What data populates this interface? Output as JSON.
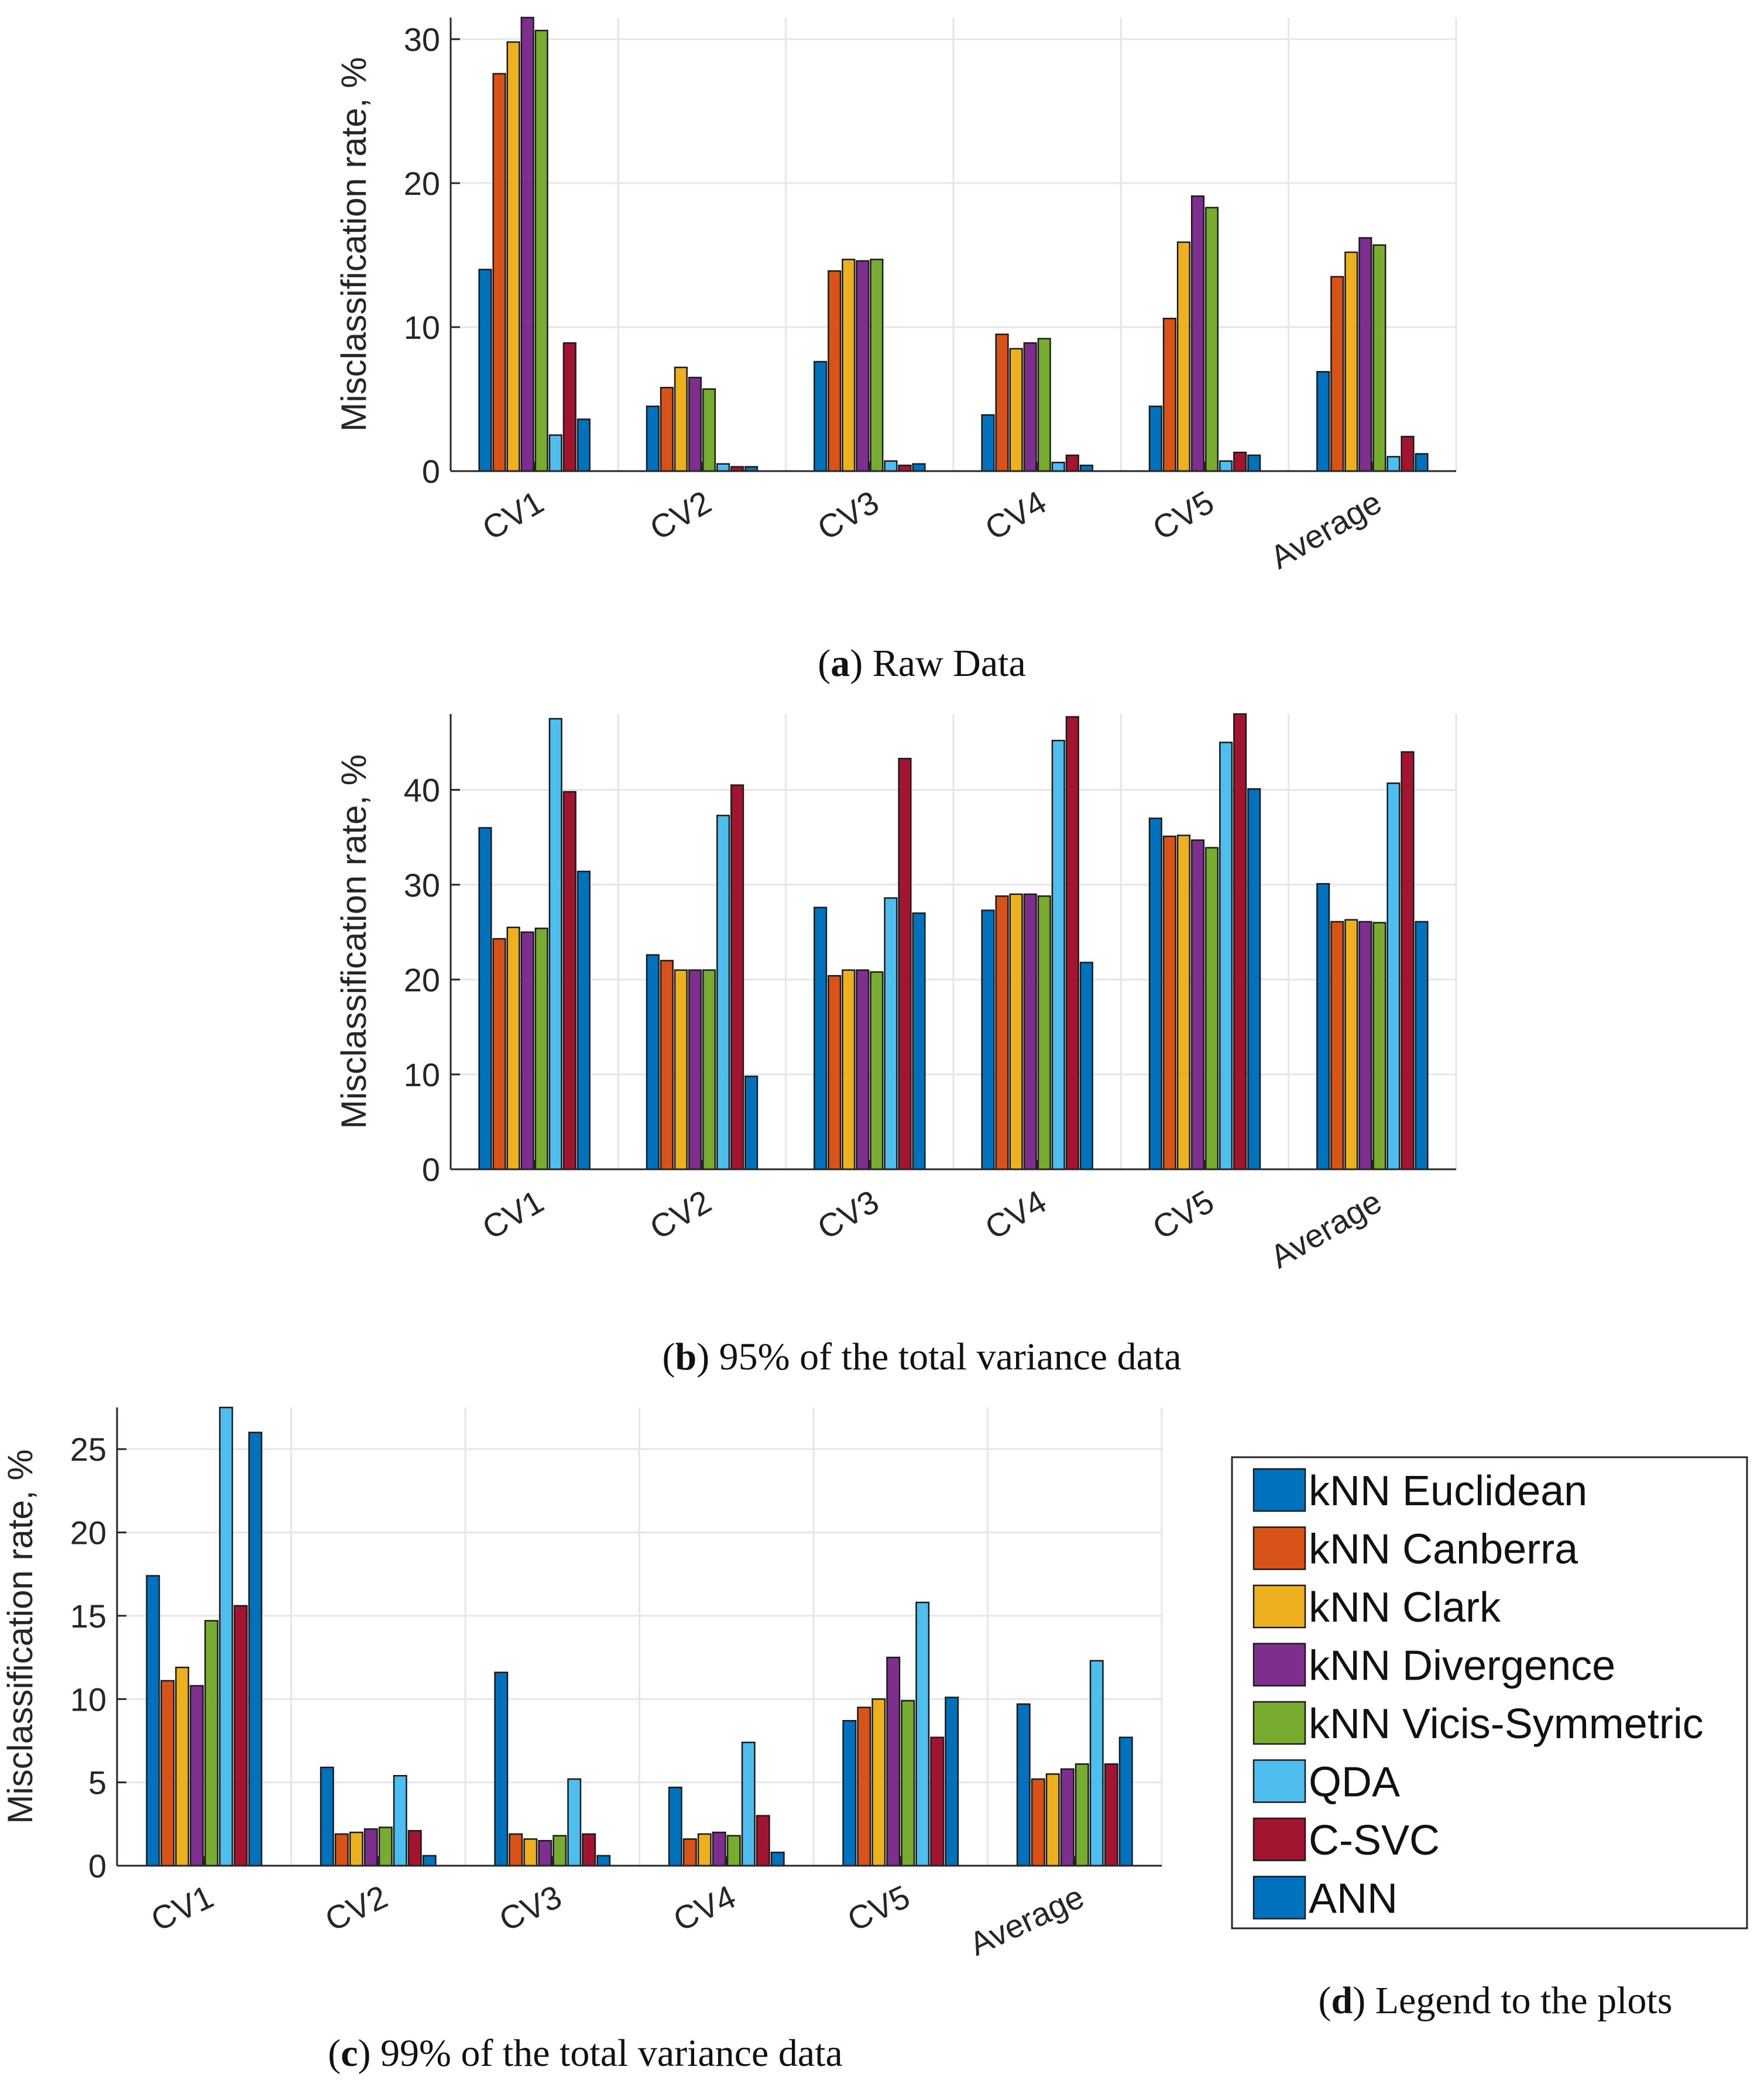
{
  "colors": {
    "kNN Euclidean": "#0072BD",
    "kNN Canberra": "#D95319",
    "kNN Clark": "#EDB120",
    "kNN Divergence": "#7E2F8E",
    "kNN Vicis-Symmetric": "#77AC30",
    "QDA": "#4DBEEE",
    "C-SVC": "#A2142F",
    "ANN": "#0072BD"
  },
  "legend": {
    "items": [
      "kNN Euclidean",
      "kNN Canberra",
      "kNN Clark",
      "kNN Divergence",
      "kNN Vicis-Symmetric",
      "QDA",
      "C-SVC",
      "ANN"
    ],
    "caption_letter": "d",
    "caption_rest": " Legend to the plots"
  },
  "chart_data": [
    {
      "type": "bar",
      "caption_letter": "a",
      "caption_rest": " Raw Data",
      "ylabel": "Misclassification rate, %",
      "ylim": [
        0,
        31.5
      ],
      "yticks": [
        0,
        10,
        20,
        30
      ],
      "grid": true,
      "categories": [
        "CV1",
        "CV2",
        "CV3",
        "CV4",
        "CV5",
        "Average"
      ],
      "series": [
        {
          "name": "kNN Euclidean",
          "values": [
            14.0,
            4.5,
            7.6,
            3.9,
            4.5,
            6.9
          ]
        },
        {
          "name": "kNN Canberra",
          "values": [
            27.6,
            5.8,
            13.9,
            9.5,
            10.6,
            13.5
          ]
        },
        {
          "name": "kNN Clark",
          "values": [
            29.8,
            7.2,
            14.7,
            8.5,
            15.9,
            15.2
          ]
        },
        {
          "name": "kNN Divergence",
          "values": [
            31.5,
            6.5,
            14.6,
            8.9,
            19.1,
            16.2
          ]
        },
        {
          "name": "kNN Vicis-Symmetric",
          "values": [
            30.6,
            5.7,
            14.7,
            9.2,
            18.3,
            15.7
          ]
        },
        {
          "name": "QDA",
          "values": [
            2.5,
            0.5,
            0.7,
            0.6,
            0.7,
            1.0
          ]
        },
        {
          "name": "C-SVC",
          "values": [
            8.9,
            0.3,
            0.4,
            1.1,
            1.3,
            2.4
          ]
        },
        {
          "name": "ANN",
          "values": [
            3.6,
            0.3,
            0.5,
            0.4,
            1.1,
            1.2
          ]
        }
      ]
    },
    {
      "type": "bar",
      "caption_letter": "b",
      "caption_rest": " 95% of the total variance data",
      "ylabel": "Misclassification rate, %",
      "ylim": [
        0,
        48
      ],
      "yticks": [
        0,
        10,
        20,
        30,
        40
      ],
      "grid": true,
      "categories": [
        "CV1",
        "CV2",
        "CV3",
        "CV4",
        "CV5",
        "Average"
      ],
      "series": [
        {
          "name": "kNN Euclidean",
          "values": [
            36.0,
            22.6,
            27.6,
            27.3,
            37.0,
            30.1
          ]
        },
        {
          "name": "kNN Canberra",
          "values": [
            24.3,
            22.0,
            20.4,
            28.8,
            35.1,
            26.1
          ]
        },
        {
          "name": "kNN Clark",
          "values": [
            25.5,
            21.0,
            21.0,
            29.0,
            35.2,
            26.3
          ]
        },
        {
          "name": "kNN Divergence",
          "values": [
            25.0,
            21.0,
            21.0,
            29.0,
            34.7,
            26.1
          ]
        },
        {
          "name": "kNN Vicis-Symmetric",
          "values": [
            25.4,
            21.0,
            20.8,
            28.8,
            33.9,
            26.0
          ]
        },
        {
          "name": "QDA",
          "values": [
            47.5,
            37.3,
            28.6,
            45.2,
            45.0,
            40.7
          ]
        },
        {
          "name": "C-SVC",
          "values": [
            39.8,
            40.5,
            43.3,
            47.7,
            48.0,
            44.0
          ]
        },
        {
          "name": "ANN",
          "values": [
            31.4,
            9.8,
            27.0,
            21.8,
            40.1,
            26.1
          ]
        }
      ]
    },
    {
      "type": "bar",
      "caption_letter": "c",
      "caption_rest": " 99% of the total variance data",
      "ylabel": "Misclassification rate, %",
      "ylim": [
        0,
        27.5
      ],
      "yticks": [
        0,
        5,
        10,
        15,
        20,
        25
      ],
      "grid": true,
      "categories": [
        "CV1",
        "CV2",
        "CV3",
        "CV4",
        "CV5",
        "Average"
      ],
      "series": [
        {
          "name": "kNN Euclidean",
          "values": [
            17.4,
            5.9,
            11.6,
            4.7,
            8.7,
            9.7
          ]
        },
        {
          "name": "kNN Canberra",
          "values": [
            11.1,
            1.9,
            1.9,
            1.6,
            9.5,
            5.2
          ]
        },
        {
          "name": "kNN Clark",
          "values": [
            11.9,
            2.0,
            1.6,
            1.9,
            10.0,
            5.5
          ]
        },
        {
          "name": "kNN Divergence",
          "values": [
            10.8,
            2.2,
            1.5,
            2.0,
            12.5,
            5.8
          ]
        },
        {
          "name": "kNN Vicis-Symmetric",
          "values": [
            14.7,
            2.3,
            1.8,
            1.8,
            9.9,
            6.1
          ]
        },
        {
          "name": "QDA",
          "values": [
            27.5,
            5.4,
            5.2,
            7.4,
            15.8,
            12.3
          ]
        },
        {
          "name": "C-SVC",
          "values": [
            15.6,
            2.1,
            1.9,
            3.0,
            7.7,
            6.1
          ]
        },
        {
          "name": "ANN",
          "values": [
            26.0,
            0.6,
            0.6,
            0.8,
            10.1,
            7.7
          ]
        }
      ]
    }
  ]
}
